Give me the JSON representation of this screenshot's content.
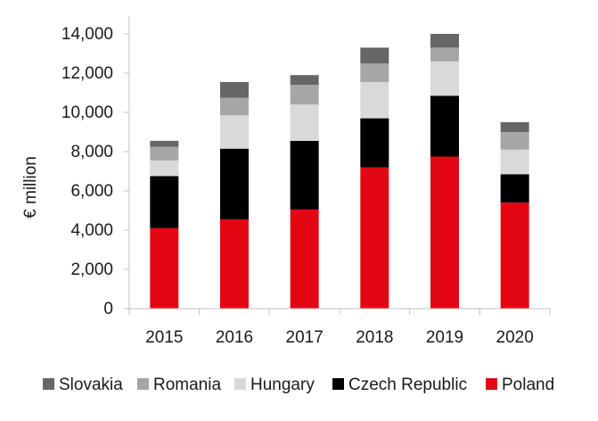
{
  "chart_data": {
    "type": "bar",
    "stacked": true,
    "title": "",
    "xlabel": "",
    "ylabel": "€ million",
    "ylim": [
      0,
      14000
    ],
    "yticks": [
      0,
      2000,
      4000,
      6000,
      8000,
      10000,
      12000,
      14000
    ],
    "ytick_labels": [
      "0",
      "2,000",
      "4,000",
      "6,000",
      "8,000",
      "10,000",
      "12,000",
      "14,000"
    ],
    "categories": [
      "2015",
      "2016",
      "2017",
      "2018",
      "2019",
      "2020"
    ],
    "series": [
      {
        "name": "Poland",
        "color": "#e30613",
        "values": [
          4100,
          4550,
          5050,
          7200,
          7750,
          5400
        ]
      },
      {
        "name": "Czech Republic",
        "color": "#000000",
        "values": [
          2650,
          3600,
          3500,
          2500,
          3100,
          1450
        ]
      },
      {
        "name": "Hungary",
        "color": "#d9d9d9",
        "values": [
          800,
          1700,
          1850,
          1850,
          1750,
          1250
        ]
      },
      {
        "name": "Romania",
        "color": "#a6a6a6",
        "values": [
          700,
          900,
          1000,
          950,
          700,
          900
        ]
      },
      {
        "name": "Slovakia",
        "color": "#666666",
        "values": [
          300,
          800,
          500,
          800,
          700,
          500
        ]
      }
    ],
    "legend": {
      "position": "bottom",
      "order": [
        "Slovakia",
        "Romania",
        "Hungary",
        "Czech Republic",
        "Poland"
      ]
    },
    "grid": false
  }
}
